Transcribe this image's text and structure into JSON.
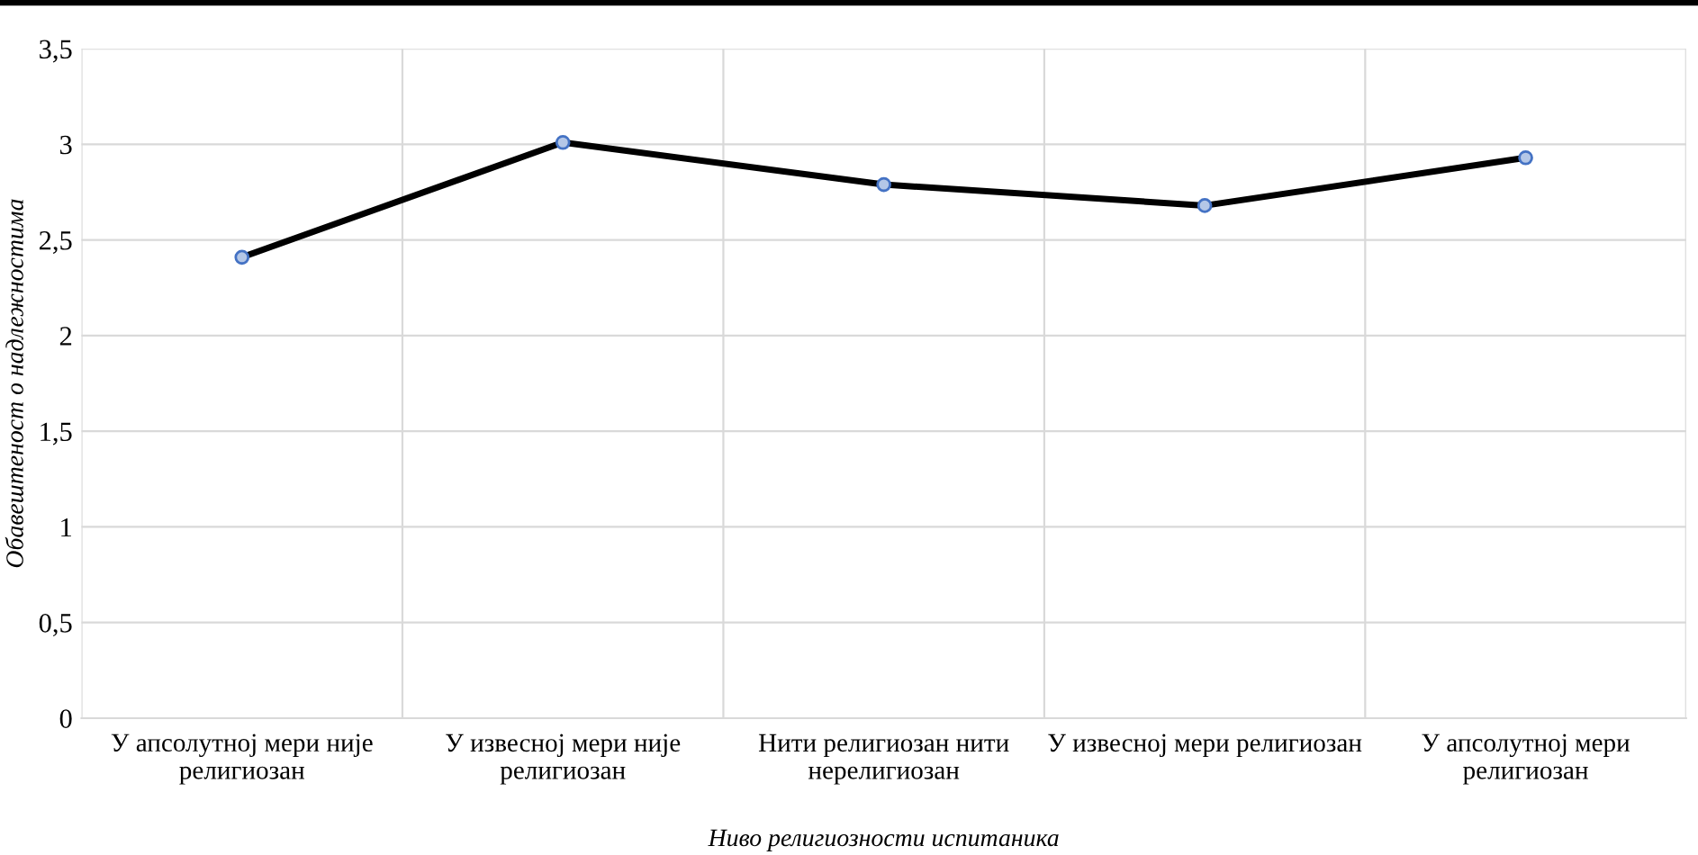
{
  "chart_data": {
    "type": "line",
    "xlabel": "Ниво религиозности испитаника",
    "ylabel": "Обавештеност о надлежностима",
    "categories": [
      "У апсолутној мери није религиозан",
      "У извесној мери није религиозан",
      "Нити религиозан нити нерелигиозан",
      "У извесној мери религиозан",
      "У апсолутној мери религиозан"
    ],
    "series": [
      {
        "color": "#000000",
        "values": [
          2.41,
          3.01,
          2.79,
          2.68,
          2.93
        ]
      }
    ],
    "ylim": [
      0,
      3.5
    ],
    "yticks": [
      0,
      {
        "value": 0.5,
        "label": "0,5"
      },
      1,
      {
        "value": 1.5,
        "label": "1,5"
      },
      2,
      {
        "value": 2.5,
        "label": "2,5"
      },
      3,
      {
        "value": 3.5,
        "label": "3,5"
      }
    ],
    "grid": true,
    "marker": "circle",
    "line_style": "solid"
  }
}
